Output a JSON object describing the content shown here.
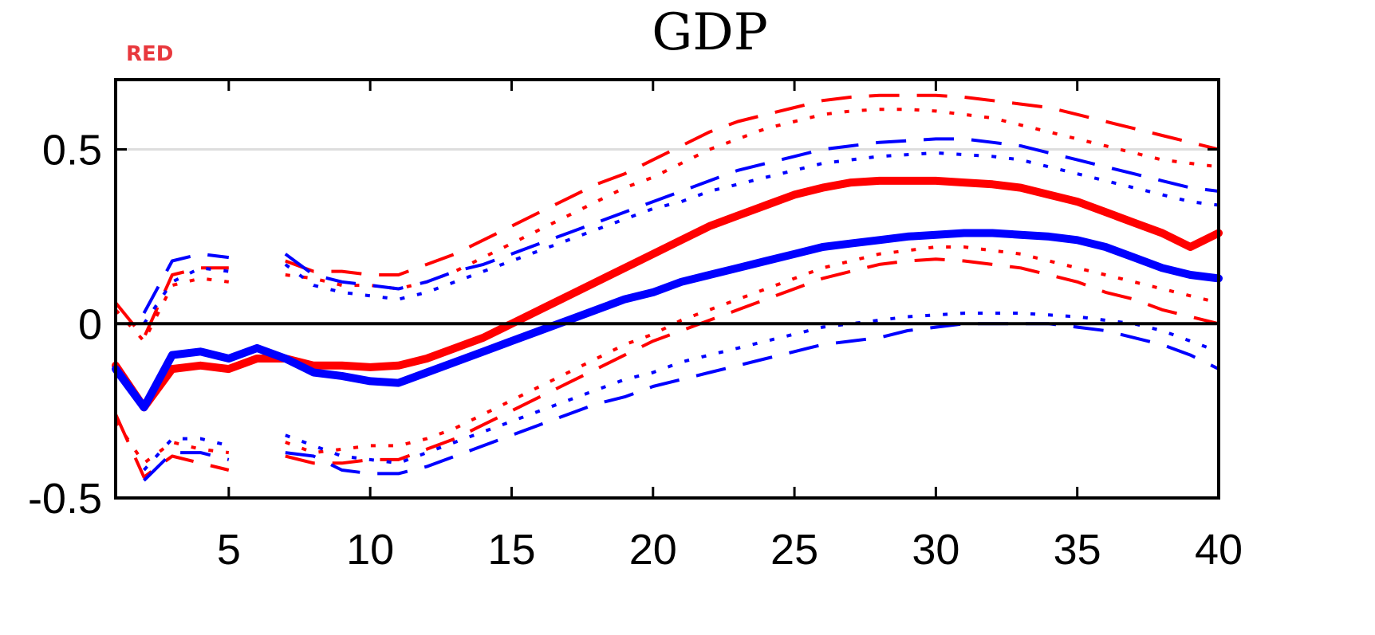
{
  "chart_data": {
    "type": "line",
    "title": "GDP",
    "corner_label": "RED",
    "xlabel": "",
    "ylabel": "",
    "xlim": [
      1,
      40
    ],
    "ylim": [
      -0.5,
      0.7
    ],
    "xticks": [
      5,
      10,
      15,
      20,
      25,
      30,
      35,
      40
    ],
    "xtick_labels": [
      "5",
      "10",
      "15",
      "20",
      "25",
      "30",
      "35",
      "40"
    ],
    "yticks": [
      -0.5,
      0,
      0.5
    ],
    "ytick_labels": [
      "-0.5",
      "0",
      "0.5"
    ],
    "gridlines_y": [
      0.5
    ],
    "zero_line": 0,
    "colors": {
      "red": "#ff0000",
      "blue": "#0000ff",
      "red_label": "#e8383d",
      "grid": "#dddddd"
    },
    "x": [
      1,
      2,
      3,
      4,
      5,
      6,
      7,
      8,
      9,
      10,
      11,
      12,
      13,
      14,
      15,
      16,
      17,
      18,
      19,
      20,
      21,
      22,
      23,
      24,
      25,
      26,
      27,
      28,
      29,
      30,
      31,
      32,
      33,
      34,
      35,
      36,
      37,
      38,
      39,
      40
    ],
    "series": [
      {
        "color": "red",
        "style": "solid",
        "width": "thick",
        "values": [
          -0.12,
          -0.24,
          -0.13,
          -0.12,
          -0.13,
          -0.1,
          -0.1,
          -0.12,
          -0.12,
          -0.125,
          -0.12,
          -0.1,
          -0.07,
          -0.04,
          0.0,
          0.04,
          0.08,
          0.12,
          0.16,
          0.2,
          0.24,
          0.28,
          0.31,
          0.34,
          0.37,
          0.39,
          0.405,
          0.41,
          0.41,
          0.41,
          0.405,
          0.4,
          0.39,
          0.37,
          0.35,
          0.32,
          0.29,
          0.26,
          0.22,
          0.26
        ]
      },
      {
        "color": "blue",
        "style": "solid",
        "width": "thick",
        "values": [
          -0.13,
          -0.24,
          -0.09,
          -0.08,
          -0.1,
          -0.07,
          -0.1,
          -0.14,
          -0.15,
          -0.165,
          -0.17,
          -0.14,
          -0.11,
          -0.08,
          -0.05,
          -0.02,
          0.01,
          0.04,
          0.07,
          0.09,
          0.12,
          0.14,
          0.16,
          0.18,
          0.2,
          0.22,
          0.23,
          0.24,
          0.25,
          0.255,
          0.26,
          0.26,
          0.255,
          0.25,
          0.24,
          0.22,
          0.19,
          0.16,
          0.14,
          0.13
        ]
      },
      {
        "color": "red",
        "style": "dashed",
        "width": "thin",
        "values": [
          0.06,
          -0.04,
          0.14,
          0.16,
          0.16,
          null,
          0.18,
          0.15,
          0.15,
          0.14,
          0.14,
          0.17,
          0.2,
          0.24,
          0.28,
          0.32,
          0.36,
          0.4,
          0.43,
          0.47,
          0.51,
          0.55,
          0.58,
          0.6,
          0.62,
          0.64,
          0.65,
          0.655,
          0.655,
          0.655,
          0.65,
          0.64,
          0.63,
          0.62,
          0.6,
          0.58,
          0.56,
          0.54,
          0.52,
          0.5
        ]
      },
      {
        "color": "red",
        "style": "dotted",
        "width": "thin",
        "values": [
          0.04,
          -0.05,
          0.11,
          0.13,
          0.12,
          null,
          0.14,
          0.13,
          0.11,
          0.11,
          0.1,
          0.12,
          0.15,
          0.19,
          0.23,
          0.27,
          0.31,
          0.35,
          0.39,
          0.42,
          0.46,
          0.5,
          0.53,
          0.56,
          0.58,
          0.6,
          0.61,
          0.615,
          0.615,
          0.61,
          0.6,
          0.59,
          0.57,
          0.55,
          0.53,
          0.51,
          0.49,
          0.47,
          0.46,
          0.45
        ]
      },
      {
        "color": "blue",
        "style": "dashed",
        "width": "thin",
        "values": [
          null,
          0.03,
          0.18,
          0.2,
          0.19,
          null,
          0.2,
          0.14,
          0.12,
          0.11,
          0.1,
          0.12,
          0.15,
          0.17,
          0.2,
          0.23,
          0.26,
          0.29,
          0.32,
          0.35,
          0.38,
          0.41,
          0.44,
          0.46,
          0.48,
          0.5,
          0.51,
          0.52,
          0.525,
          0.53,
          0.53,
          0.52,
          0.51,
          0.49,
          0.47,
          0.45,
          0.43,
          0.41,
          0.39,
          0.38
        ]
      },
      {
        "color": "blue",
        "style": "dotted",
        "width": "thin",
        "values": [
          null,
          0.0,
          0.12,
          0.16,
          0.15,
          null,
          0.17,
          0.11,
          0.09,
          0.08,
          0.07,
          0.09,
          0.12,
          0.15,
          0.18,
          0.21,
          0.24,
          0.27,
          0.3,
          0.33,
          0.35,
          0.38,
          0.4,
          0.42,
          0.44,
          0.46,
          0.47,
          0.48,
          0.485,
          0.49,
          0.485,
          0.48,
          0.47,
          0.45,
          0.43,
          0.41,
          0.39,
          0.37,
          0.35,
          0.34
        ]
      },
      {
        "color": "red",
        "style": "dashed",
        "width": "thin",
        "values": [
          -0.26,
          -0.44,
          -0.38,
          -0.4,
          -0.42,
          null,
          -0.38,
          -0.4,
          -0.4,
          -0.39,
          -0.39,
          -0.36,
          -0.33,
          -0.29,
          -0.25,
          -0.21,
          -0.17,
          -0.13,
          -0.09,
          -0.05,
          -0.02,
          0.01,
          0.04,
          0.07,
          0.1,
          0.13,
          0.15,
          0.17,
          0.18,
          0.185,
          0.18,
          0.17,
          0.16,
          0.14,
          0.12,
          0.09,
          0.07,
          0.04,
          0.02,
          0.0
        ]
      },
      {
        "color": "red",
        "style": "dotted",
        "width": "thin",
        "values": [
          -0.28,
          -0.4,
          -0.34,
          -0.36,
          -0.37,
          null,
          -0.34,
          -0.37,
          -0.36,
          -0.35,
          -0.35,
          -0.33,
          -0.3,
          -0.26,
          -0.22,
          -0.18,
          -0.14,
          -0.1,
          -0.06,
          -0.03,
          0.01,
          0.04,
          0.07,
          0.1,
          0.13,
          0.16,
          0.18,
          0.2,
          0.21,
          0.22,
          0.22,
          0.21,
          0.2,
          0.18,
          0.16,
          0.14,
          0.12,
          0.1,
          0.08,
          0.06
        ]
      },
      {
        "color": "blue",
        "style": "dashed",
        "width": "thin",
        "values": [
          null,
          -0.45,
          -0.37,
          -0.37,
          -0.39,
          null,
          -0.37,
          -0.38,
          -0.42,
          -0.43,
          -0.43,
          -0.41,
          -0.38,
          -0.35,
          -0.32,
          -0.29,
          -0.26,
          -0.23,
          -0.21,
          -0.18,
          -0.16,
          -0.14,
          -0.12,
          -0.1,
          -0.08,
          -0.06,
          -0.05,
          -0.04,
          -0.02,
          -0.01,
          0.0,
          0.0,
          0.0,
          0.0,
          -0.01,
          -0.02,
          -0.04,
          -0.06,
          -0.09,
          -0.13
        ]
      },
      {
        "color": "blue",
        "style": "dotted",
        "width": "thin",
        "values": [
          null,
          -0.42,
          -0.33,
          -0.33,
          -0.35,
          null,
          -0.32,
          -0.35,
          -0.38,
          -0.39,
          -0.4,
          -0.37,
          -0.34,
          -0.31,
          -0.28,
          -0.25,
          -0.22,
          -0.19,
          -0.16,
          -0.14,
          -0.11,
          -0.09,
          -0.07,
          -0.05,
          -0.03,
          -0.01,
          0.0,
          0.01,
          0.02,
          0.025,
          0.03,
          0.03,
          0.03,
          0.025,
          0.02,
          0.01,
          0.0,
          -0.02,
          -0.05,
          -0.08
        ]
      }
    ]
  }
}
